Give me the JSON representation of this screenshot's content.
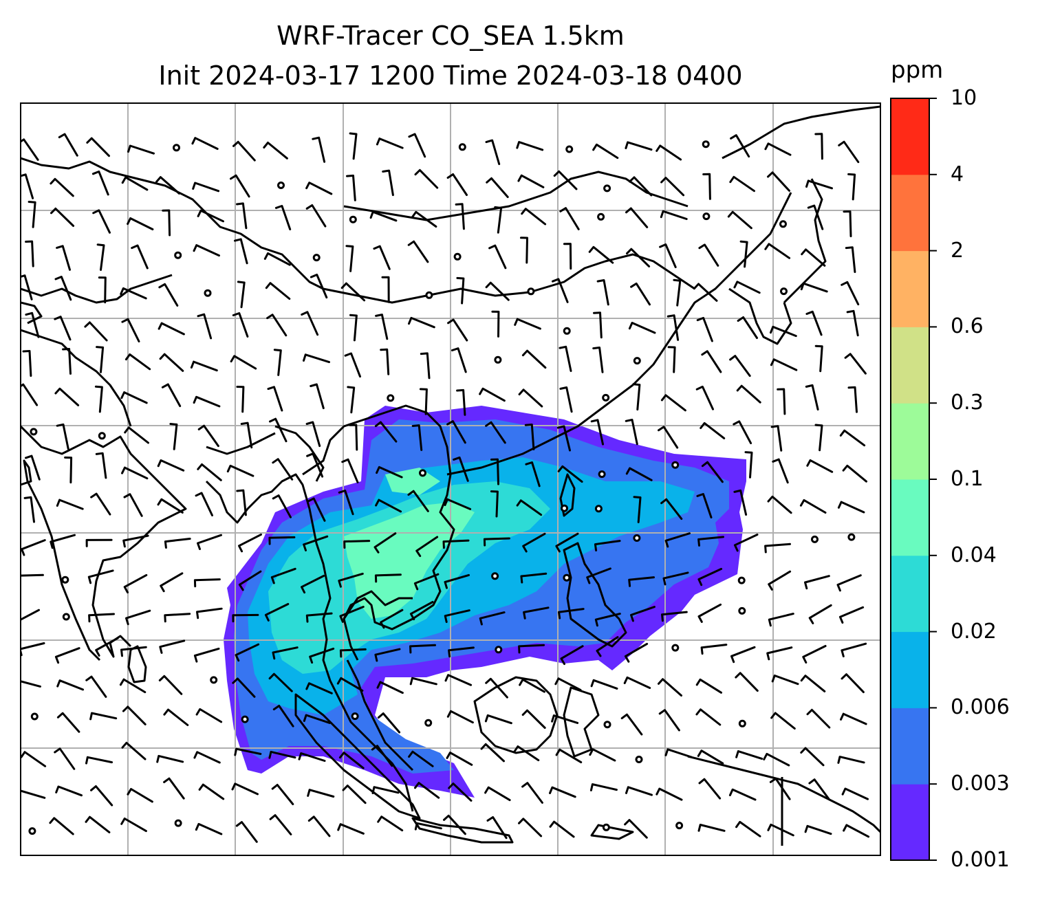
{
  "map": {
    "title_line1": "WRF-Tracer CO_SEA 1.5km",
    "title_line2": "Init 2024-03-17 1200 Time 2024-03-18 0400",
    "variable": "CO tracer concentration",
    "projection_grid": "graticule lines shown (unlabeled)",
    "overlays": [
      "coastlines",
      "country borders",
      "wind barbs",
      "calm-wind circles"
    ]
  },
  "colorbar": {
    "unit": "ppm",
    "levels": [
      "0.001",
      "0.003",
      "0.006",
      "0.02",
      "0.04",
      "0.1",
      "0.3",
      "0.6",
      "2",
      "4",
      "10"
    ],
    "colors": [
      "#6529ff",
      "#3775f1",
      "#09b2ea",
      "#2ddbd6",
      "#69fbbf",
      "#9dfb99",
      "#d0e187",
      "#ffb263",
      "#ff733c",
      "#ff2a17"
    ]
  }
}
